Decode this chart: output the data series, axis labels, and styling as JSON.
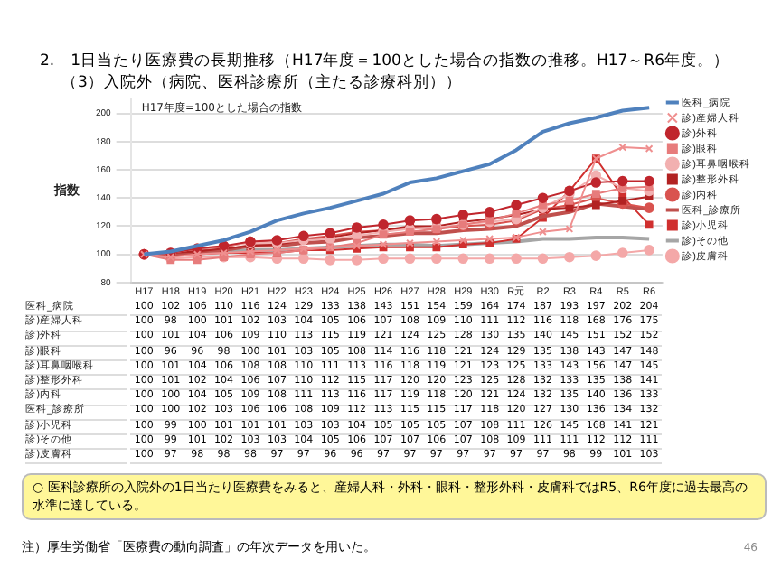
{
  "chart_data": {
    "type": "line",
    "title": "2.　1日当たり医療費の長期推移（H17年度＝100とした場合の指数の推移。H17～R6年度。）",
    "subtitle": "（3）入院外（病院、医科診療所（主たる診療科別））",
    "ylabel": "指数",
    "categories": [
      "H17",
      "H18",
      "H19",
      "H20",
      "H21",
      "H22",
      "H23",
      "H24",
      "H25",
      "H26",
      "H27",
      "H28",
      "H29",
      "H30",
      "R元",
      "R2",
      "R3",
      "R4",
      "R5",
      "R6"
    ],
    "series": [
      {
        "name": "医科_病院",
        "color": "#4f81bd",
        "marker": "none",
        "values": [
          100,
          102,
          106,
          110,
          116,
          124,
          129,
          133,
          138,
          143,
          151,
          154,
          159,
          164,
          174,
          187,
          193,
          197,
          202,
          204
        ]
      },
      {
        "name": "診)産婦人科",
        "color": "#ef8f8f",
        "marker": "cross",
        "values": [
          100,
          98,
          100,
          101,
          102,
          103,
          104,
          105,
          106,
          107,
          108,
          109,
          110,
          111,
          112,
          116,
          118,
          168,
          176,
          175
        ]
      },
      {
        "name": "診)外科",
        "color": "#c0262d",
        "marker": "circle",
        "values": [
          100,
          101,
          104,
          106,
          109,
          110,
          113,
          115,
          119,
          121,
          124,
          125,
          128,
          130,
          135,
          140,
          145,
          151,
          152,
          152
        ]
      },
      {
        "name": "診)眼科",
        "color": "#e77c7c",
        "marker": "square",
        "values": [
          100,
          96,
          96,
          98,
          100,
          101,
          103,
          105,
          108,
          114,
          116,
          118,
          121,
          124,
          129,
          135,
          138,
          143,
          147,
          148
        ]
      },
      {
        "name": "診)耳鼻咽喉科",
        "color": "#f2b0b0",
        "marker": "circle",
        "values": [
          100,
          101,
          104,
          106,
          108,
          108,
          110,
          111,
          113,
          116,
          118,
          119,
          121,
          123,
          125,
          133,
          143,
          156,
          147,
          145
        ]
      },
      {
        "name": "診)整形外科",
        "color": "#b22222",
        "marker": "square",
        "values": [
          100,
          101,
          102,
          104,
          106,
          107,
          110,
          112,
          115,
          117,
          120,
          120,
          123,
          125,
          128,
          132,
          133,
          135,
          138,
          141
        ]
      },
      {
        "name": "診)内科",
        "color": "#d9534f",
        "marker": "circle",
        "values": [
          100,
          100,
          104,
          105,
          109,
          108,
          111,
          113,
          116,
          117,
          119,
          118,
          120,
          121,
          124,
          132,
          135,
          140,
          136,
          133
        ]
      },
      {
        "name": "医科_診療所",
        "color": "#c0504d",
        "marker": "none",
        "values": [
          100,
          100,
          102,
          103,
          106,
          106,
          108,
          109,
          112,
          113,
          115,
          115,
          117,
          118,
          120,
          127,
          130,
          136,
          134,
          132
        ]
      },
      {
        "name": "診)小児科",
        "color": "#d0302f",
        "marker": "square",
        "values": [
          100,
          99,
          100,
          101,
          101,
          101,
          103,
          103,
          104,
          105,
          105,
          105,
          107,
          108,
          111,
          126,
          145,
          168,
          141,
          121
        ]
      },
      {
        "name": "診)その他",
        "color": "#a6a6a6",
        "marker": "none",
        "values": [
          100,
          99,
          101,
          102,
          103,
          103,
          104,
          105,
          106,
          107,
          107,
          106,
          107,
          108,
          109,
          111,
          111,
          112,
          112,
          111
        ]
      },
      {
        "name": "診)皮膚科",
        "color": "#f4a8a8",
        "marker": "circle",
        "values": [
          100,
          97,
          98,
          98,
          98,
          97,
          97,
          96,
          96,
          97,
          97,
          97,
          97,
          97,
          97,
          97,
          98,
          99,
          101,
          103
        ]
      }
    ],
    "ylim": [
      80,
      210
    ],
    "yticks": [
      80,
      100,
      120,
      140,
      160,
      180,
      200
    ],
    "grid": "y",
    "legend": "right",
    "data_labels": true,
    "annotations": [
      "H17年度=100とした場合の指数",
      "○ 医科診療所の入院外の1日当たり医療費をみると、産婦人科・外科・眼科・整形外科・皮膚科ではR5、R6年度に過去最高の水準に達している。",
      "注）厚生労働省「医療費の動向調査」の年次データを用いた。",
      "46"
    ]
  }
}
